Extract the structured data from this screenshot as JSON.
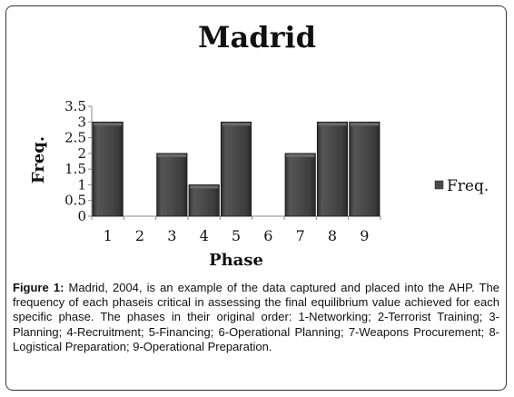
{
  "chart_data": {
    "type": "bar",
    "title": "Madrid",
    "xlabel": "Phase",
    "ylabel": "Freq.",
    "categories": [
      "1",
      "2",
      "3",
      "4",
      "5",
      "6",
      "7",
      "8",
      "9"
    ],
    "series": [
      {
        "name": "Freq.",
        "values": [
          3,
          0,
          2,
          1,
          3,
          0,
          2,
          3,
          3
        ]
      }
    ],
    "yticks": [
      "0",
      "0.5",
      "1",
      "1.5",
      "2",
      "2.5",
      "3",
      "3.5"
    ],
    "ylim": [
      0,
      3.5
    ],
    "grid": false,
    "legend_position": "right",
    "bar_color": "#4a4a4a"
  },
  "caption": {
    "label": "Figure 1:",
    "text": " Madrid, 2004, is an example of the data captured and placed into the AHP. The frequency of each phaseis critical in assessing the final equilibrium value achieved for each specific phase. The phases in their original order: 1-Networking; 2-Terrorist Training; 3-Planning; 4-Recruitment; 5-Financing; 6-Operational Planning; 7-Weapons Procurement; 8-Logistical Preparation; 9-Operational Preparation."
  }
}
